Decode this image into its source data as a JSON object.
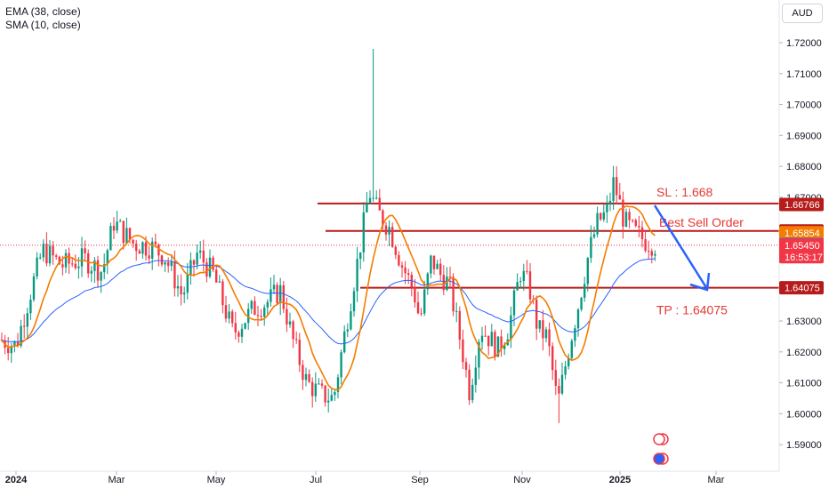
{
  "indicators": {
    "ema_label": "EMA (38, close)",
    "sma_label": "SMA (10, close)"
  },
  "currency_button": "AUD",
  "chart_data": {
    "type": "candlestick",
    "title": "",
    "xlabel": "",
    "ylabel": "",
    "ylim": [
      1.585,
      1.725
    ],
    "x_ticks": [
      "2024",
      "Mar",
      "May",
      "Jul",
      "Sep",
      "Nov",
      "2025",
      "Mar"
    ],
    "y_ticks": [
      "1.72000",
      "1.71000",
      "1.70000",
      "1.69000",
      "1.68000",
      "1.67000",
      "1.66000",
      "1.65000",
      "1.64000",
      "1.63000",
      "1.62000",
      "1.61000",
      "1.60000",
      "1.59000"
    ],
    "series": [
      {
        "name": "EMA (38, close)",
        "color": "#2962ff"
      },
      {
        "name": "SMA (10, close)",
        "color": "#f57c00"
      }
    ],
    "levels": [
      {
        "value": 1.668,
        "color": "#b71c1c"
      },
      {
        "value": 1.6591,
        "color": "#b71c1c"
      },
      {
        "value": 1.64075,
        "color": "#b71c1c"
      }
    ],
    "annotations": [
      {
        "text": "SL : 1.668",
        "color": "#e53935"
      },
      {
        "text": "Best Sell Order",
        "color": "#e53935"
      },
      {
        "text": "TP : 1.64075",
        "color": "#e53935"
      }
    ],
    "price_labels": [
      {
        "text": "1.66766",
        "value": 1.66766,
        "bg": "#b71c1c"
      },
      {
        "text": "1.65913",
        "value": 1.65913,
        "bg": "#b71c1c"
      },
      {
        "text": "1.65854",
        "value": 1.65854,
        "bg": "#f57c00"
      },
      {
        "text": "1.65471",
        "value": 1.65471,
        "bg": "#2962ff"
      },
      {
        "text": "1.65450",
        "value": 1.6545,
        "bg": "#f23645",
        "extra": "16:53:17"
      },
      {
        "text": "1.64075",
        "value": 1.64075,
        "bg": "#b71c1c"
      }
    ],
    "current_price": 1.6545
  }
}
